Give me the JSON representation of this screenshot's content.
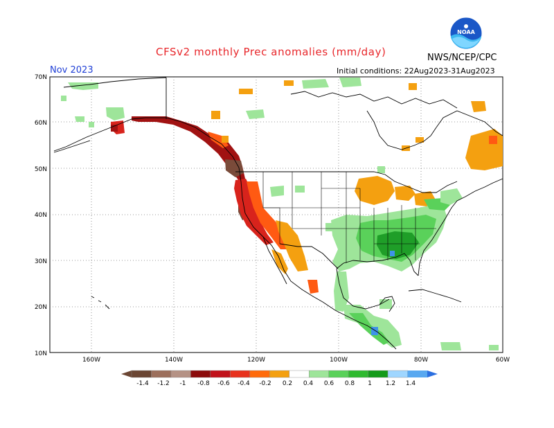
{
  "header": {
    "title": "CFSv2 monthly Prec anomalies (mm/day)",
    "agency": "NWS/NCEP/CPC",
    "month": "Nov 2023",
    "initial_conditions": "Initial conditions: 22Aug2023-31Aug2023",
    "logo_text": "NOAA"
  },
  "map": {
    "lat_labels": [
      "70N",
      "60N",
      "50N",
      "40N",
      "30N",
      "20N",
      "10N"
    ],
    "lon_labels": [
      "160W",
      "140W",
      "120W",
      "100W",
      "80W",
      "60W"
    ],
    "grid": true
  },
  "legend": {
    "labels": [
      "-1.4",
      "-1.2",
      "-1",
      "-0.8",
      "-0.6",
      "-0.4",
      "-0.2",
      "0.2",
      "0.4",
      "0.6",
      "0.8",
      "1",
      "1.2",
      "1.4"
    ],
    "colors": [
      "#6b4633",
      "#9c6f5c",
      "#b59285",
      "#8c0c0c",
      "#c1121b",
      "#e8321e",
      "#ff6a0a",
      "#f4a010",
      "#ffffff",
      "#9ee59a",
      "#5ad15a",
      "#2fba2f",
      "#149b1a",
      "#9fd6ff",
      "#58a8f0",
      "#2b6fe0"
    ]
  },
  "anomaly_colors": {
    "dry_strong": "#7a4b3a",
    "dry_dark_red": "#a11212",
    "dry_red": "#d8231c",
    "dry_orange_red": "#ff5a12",
    "dry_orange": "#f4a010",
    "wet_light": "#9ee59a",
    "wet_medium": "#5ad15a",
    "wet_strong": "#1f9e28",
    "wet_blue": "#3f93e8"
  }
}
